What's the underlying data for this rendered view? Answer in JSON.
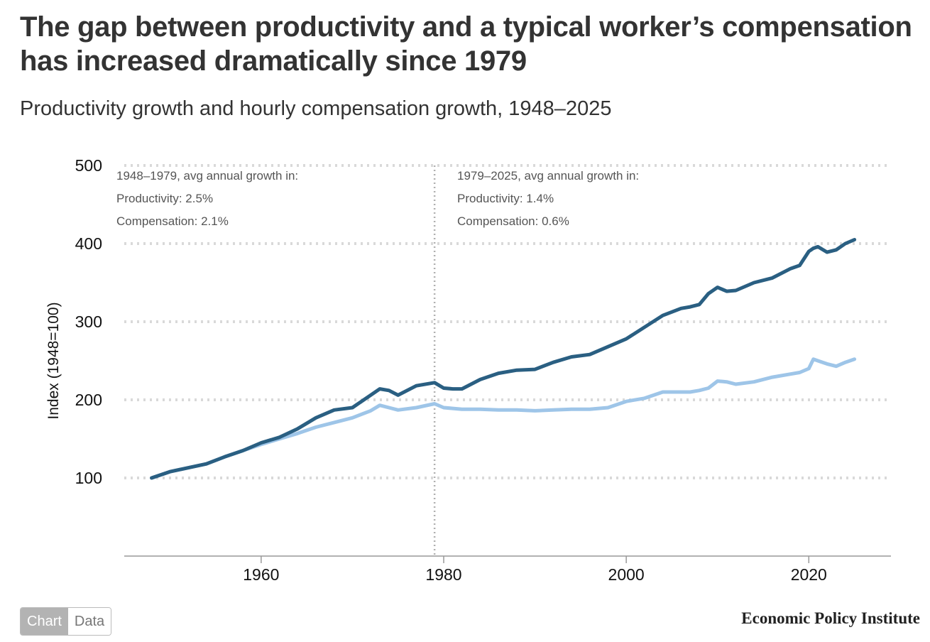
{
  "header": {
    "title": "The gap between productivity and a typical worker’s compensation has increased dramatically since 1979",
    "subtitle": "Productivity growth and hourly compensation growth, 1948–2025"
  },
  "annotations": {
    "left": {
      "line1": "1948–1979, avg annual growth in:",
      "line2": "Productivity: 2.5%",
      "line3": "Compensation: 2.1%"
    },
    "right": {
      "line1": "1979–2025, avg annual growth in:",
      "line2": "Productivity: 1.4%",
      "line3": "Compensation: 0.6%"
    }
  },
  "toggle": {
    "chart_label": "Chart",
    "data_label": "Data"
  },
  "footer": {
    "brand": "Economic Policy Institute"
  },
  "colors": {
    "productivity": "#2a5f82",
    "compensation": "#9ec5e8",
    "grid": "#d9d9d9",
    "divider": "#b0b0b0"
  },
  "chart_data": {
    "type": "line",
    "title": "The gap between productivity and a typical worker’s compensation has increased dramatically since 1979",
    "subtitle": "Productivity growth and hourly compensation growth, 1948–2025",
    "xlabel": "",
    "ylabel": "Index (1948=100)",
    "xlim": [
      1945,
      2029
    ],
    "ylim": [
      0,
      500
    ],
    "xticks": [
      1960,
      1980,
      2000,
      2020
    ],
    "yticks": [
      100,
      200,
      300,
      400,
      500
    ],
    "grid": "horizontal dotted",
    "reference_line": 1979,
    "series": [
      {
        "name": "Productivity",
        "x": [
          1948,
          1950,
          1952,
          1954,
          1956,
          1958,
          1960,
          1962,
          1964,
          1966,
          1968,
          1970,
          1972,
          1973,
          1974,
          1975,
          1977,
          1979,
          1980,
          1981,
          1982,
          1984,
          1986,
          1988,
          1990,
          1992,
          1994,
          1996,
          1998,
          2000,
          2002,
          2004,
          2006,
          2007,
          2008,
          2009,
          2010,
          2011,
          2012,
          2014,
          2016,
          2018,
          2019,
          2020,
          2020.5,
          2021,
          2022,
          2023,
          2024,
          2025
        ],
        "values": [
          100,
          108,
          113,
          118,
          127,
          135,
          145,
          152,
          163,
          177,
          187,
          190,
          206,
          214,
          212,
          206,
          218,
          222,
          215,
          214,
          214,
          226,
          234,
          238,
          239,
          248,
          255,
          258,
          268,
          278,
          293,
          308,
          317,
          319,
          322,
          336,
          344,
          339,
          340,
          350,
          356,
          368,
          372,
          390,
          394,
          396,
          389,
          392,
          400,
          405
        ]
      },
      {
        "name": "Compensation",
        "x": [
          1948,
          1950,
          1952,
          1954,
          1956,
          1958,
          1960,
          1962,
          1964,
          1966,
          1968,
          1970,
          1972,
          1973,
          1974,
          1975,
          1977,
          1979,
          1980,
          1981,
          1982,
          1984,
          1986,
          1988,
          1990,
          1992,
          1994,
          1996,
          1998,
          2000,
          2002,
          2004,
          2006,
          2007,
          2008,
          2009,
          2010,
          2011,
          2012,
          2014,
          2016,
          2018,
          2019,
          2020,
          2020.5,
          2021,
          2022,
          2023,
          2024,
          2025
        ],
        "values": [
          100,
          108,
          113,
          118,
          127,
          135,
          143,
          150,
          157,
          165,
          171,
          177,
          186,
          193,
          190,
          187,
          190,
          195,
          190,
          189,
          188,
          188,
          187,
          187,
          186,
          187,
          188,
          188,
          190,
          198,
          202,
          210,
          210,
          210,
          212,
          215,
          224,
          223,
          220,
          223,
          229,
          233,
          235,
          240,
          252,
          250,
          246,
          243,
          248,
          252
        ]
      }
    ]
  }
}
